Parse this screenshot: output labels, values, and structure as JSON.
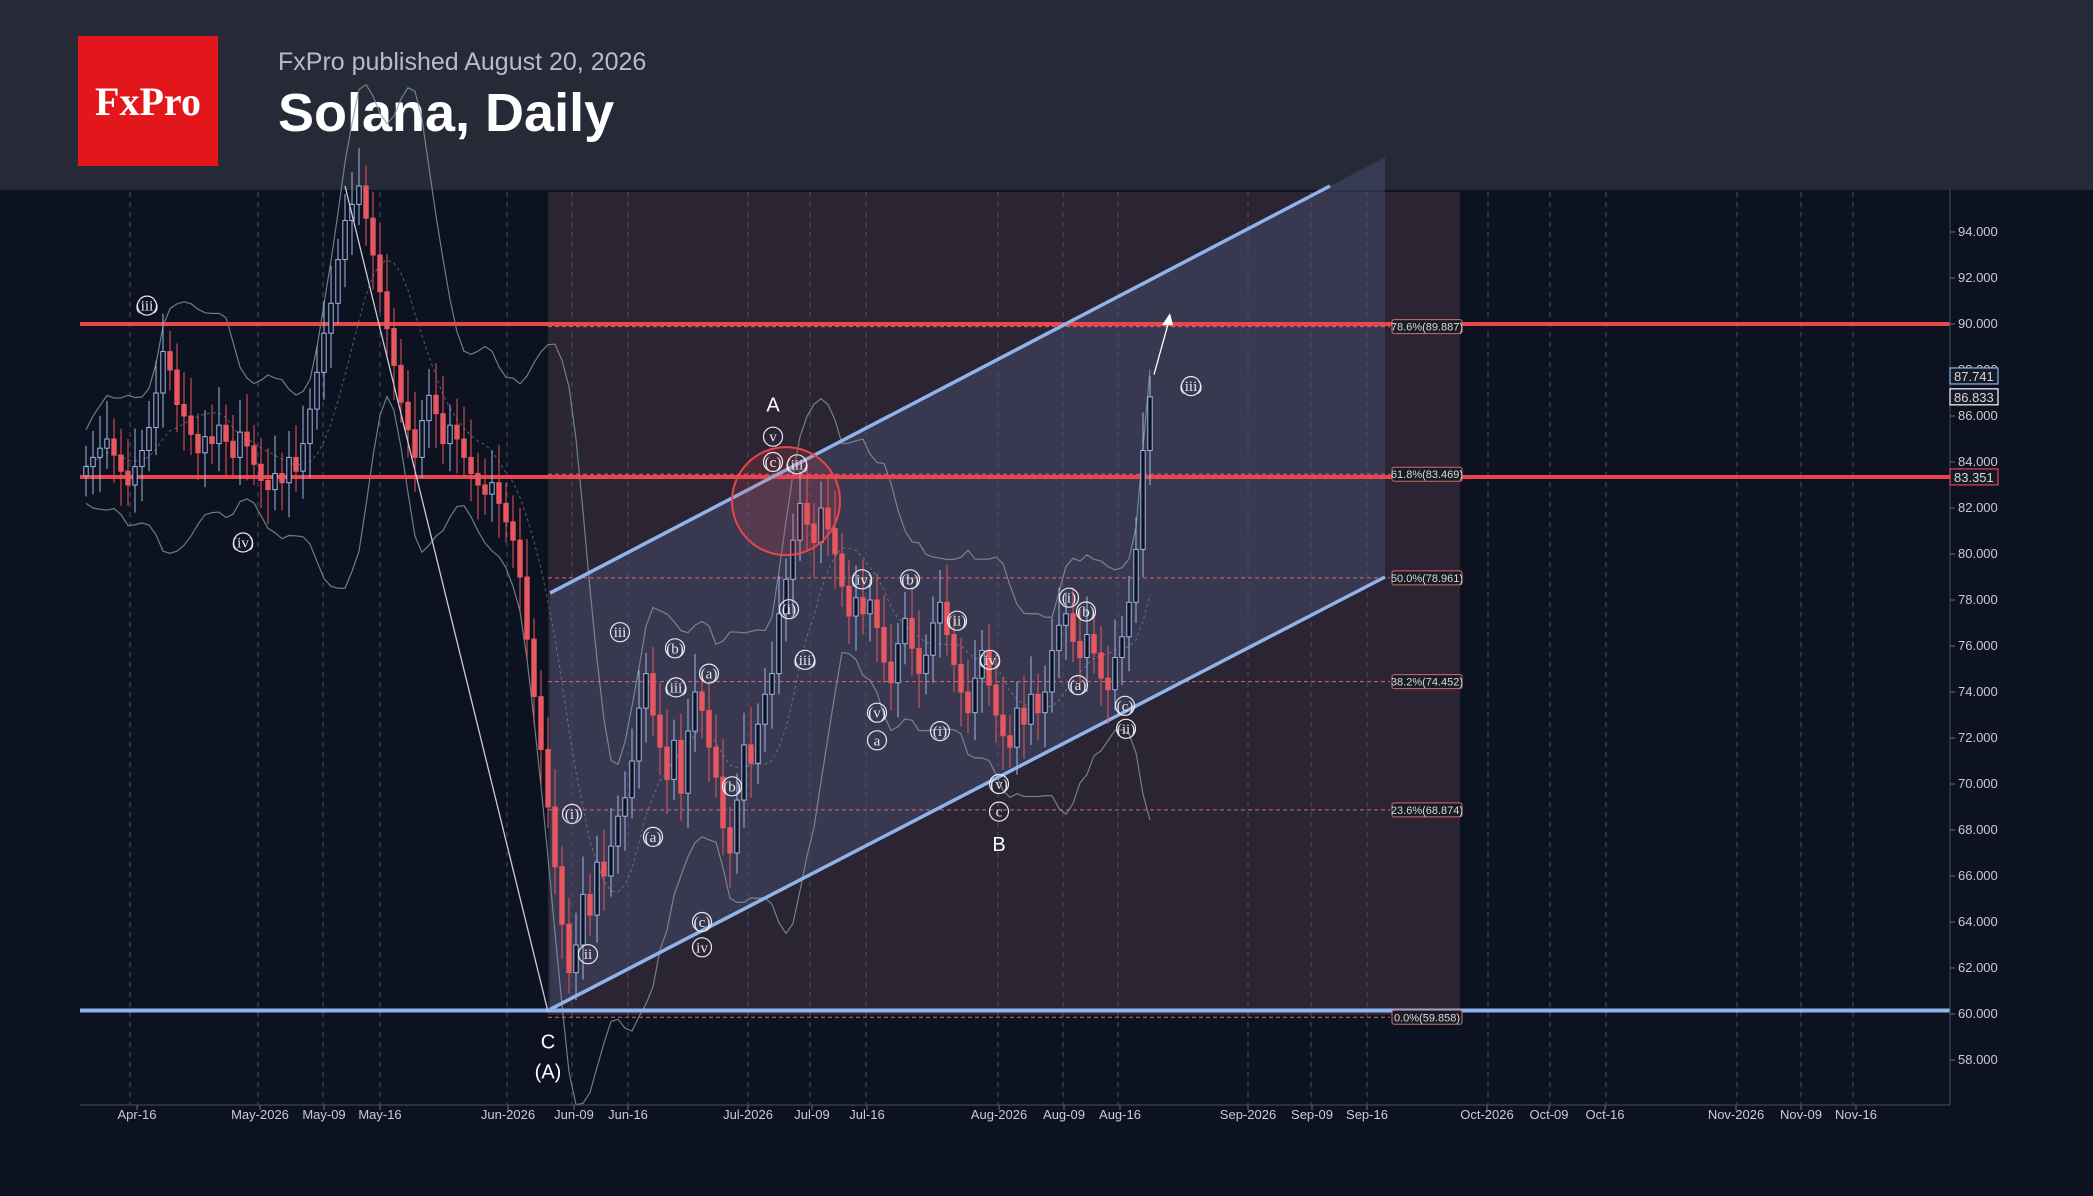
{
  "header": {
    "logo_text": "FxPro",
    "published": "FxPro published August 20, 2026",
    "title": "Solana, Daily"
  },
  "chart_data": {
    "type": "candlestick",
    "ylim": [
      56.5,
      96.0
    ],
    "y_ticks": [
      "58.000",
      "60.000",
      "62.000",
      "64.000",
      "66.000",
      "68.000",
      "70.000",
      "72.000",
      "74.000",
      "76.000",
      "78.000",
      "80.000",
      "82.000",
      "84.000",
      "86.000",
      "88.000",
      "90.000",
      "92.000",
      "94.000"
    ],
    "x_ticks": [
      "Apr-16",
      "May-2026",
      "May-09",
      "May-16",
      "Jun-2026",
      "Jun-09",
      "Jun-16",
      "Jul-2026",
      "Jul-09",
      "Jul-16",
      "Aug-2026",
      "Aug-09",
      "Aug-16",
      "Sep-2026",
      "Sep-09",
      "Sep-16",
      "Oct-2026",
      "Oct-09",
      "Oct-16",
      "Nov-2026",
      "Nov-09",
      "Nov-16"
    ],
    "price_tags": [
      {
        "label": "87.741",
        "value": 87.741,
        "color": "#8fb3ea"
      },
      {
        "label": "86.833",
        "value": 86.833,
        "color": "#ffffff"
      },
      {
        "label": "83.351",
        "value": 83.351,
        "color": "#e8454d"
      }
    ],
    "horizontal_levels": [
      {
        "value": 90.0,
        "color": "#e8454d"
      },
      {
        "value": 83.35,
        "color": "#e8454d"
      },
      {
        "value": 60.15,
        "color": "#8fb3ea"
      }
    ],
    "fib_levels": [
      {
        "label": "78.6%(89.887)",
        "value": 89.887
      },
      {
        "label": "61.8%(83.469)",
        "value": 83.469
      },
      {
        "label": "50.0%(78.961)",
        "value": 78.961
      },
      {
        "label": "38.2%(74.452)",
        "value": 74.452
      },
      {
        "label": "23.6%(68.874)",
        "value": 68.874
      },
      {
        "label": "0.0%(59.858)",
        "value": 59.858
      }
    ],
    "channel": {
      "upper": [
        {
          "x": 550,
          "y": 78.3
        },
        {
          "x": 1330,
          "y": 96.0
        }
      ],
      "lower": [
        {
          "x": 550,
          "y": 60.2
        },
        {
          "x": 1385,
          "y": 79.0
        }
      ]
    },
    "close_series": [
      83.8,
      84.2,
      84.6,
      85.0,
      84.3,
      83.6,
      83.0,
      83.8,
      84.5,
      85.5,
      87.0,
      88.8,
      88.0,
      86.5,
      86.0,
      85.2,
      84.4,
      85.1,
      84.8,
      85.6,
      84.9,
      84.2,
      85.3,
      84.7,
      83.9,
      83.2,
      82.8,
      83.5,
      83.1,
      84.2,
      83.6,
      84.8,
      86.3,
      87.9,
      89.6,
      90.9,
      92.8,
      94.5,
      95.2,
      96.0,
      94.6,
      93.0,
      91.4,
      89.8,
      88.2,
      86.6,
      85.4,
      84.2,
      85.8,
      86.9,
      86.1,
      84.8,
      85.6,
      85.0,
      84.2,
      83.5,
      83.0,
      82.6,
      83.1,
      82.2,
      81.4,
      80.6,
      79.0,
      76.3,
      73.8,
      71.5,
      69.0,
      66.4,
      63.9,
      61.8,
      63.0,
      65.2,
      64.3,
      66.6,
      66.0,
      67.3,
      68.6,
      69.4,
      71.0,
      73.3,
      74.8,
      73.0,
      71.6,
      70.2,
      71.9,
      69.6,
      72.3,
      74.0,
      73.2,
      71.6,
      70.3,
      68.1,
      67.0,
      69.3,
      71.7,
      70.9,
      72.6,
      73.9,
      74.8,
      77.4,
      78.9,
      80.6,
      82.2,
      81.3,
      80.5,
      82.0,
      81.1,
      80.0,
      78.6,
      77.3,
      78.1,
      77.4,
      78.0,
      76.8,
      75.3,
      74.4,
      76.1,
      77.2,
      75.9,
      74.8,
      75.6,
      77.0,
      77.9,
      76.5,
      75.2,
      74.0,
      73.1,
      74.6,
      75.8,
      74.3,
      73.0,
      72.1,
      71.6,
      73.3,
      72.6,
      73.9,
      73.1,
      74.0,
      75.8,
      76.9,
      77.4,
      76.2,
      75.5,
      76.5,
      75.7,
      74.6,
      74.1,
      75.5,
      76.4,
      77.9,
      80.2,
      84.5,
      86.833
    ],
    "wave_labels": [
      "(iii)",
      "(iv)",
      "A",
      "v",
      "(c)",
      "(iii)",
      "(i)",
      "(iii)",
      "(iv)",
      "(b)",
      "(ii)",
      "(i)",
      "(b)",
      "(iv)",
      "(a)",
      "(c)",
      "(ii)",
      "(v)",
      "c",
      "B",
      "iii",
      "(iii)",
      "(b)",
      "(a)",
      "(i)",
      "(b)",
      "(a)",
      "(v)",
      "a",
      "(i)",
      "ii",
      "(c)",
      "iv",
      "C",
      "(A)",
      "(iii)"
    ]
  }
}
